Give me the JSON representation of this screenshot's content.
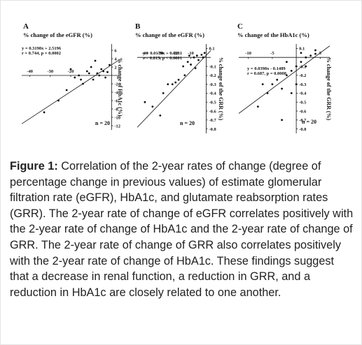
{
  "chart_data": [
    {
      "type": "scatter",
      "panel": "A",
      "xlabel": "% change of the eGFR (%)",
      "ylabel": "% change of HbA1c (%)",
      "equation": "y = 0.3198x + 2.5196",
      "stats": "r = 0.744, p = 0.0002",
      "n_label": "n = 20",
      "fit": {
        "slope": 0.3198,
        "intercept": 2.5196
      },
      "xlim": [
        -44,
        4
      ],
      "ylim": [
        -13,
        7.5
      ],
      "xticks": [
        -40,
        -30,
        -20
      ],
      "yticks": [
        6,
        4,
        2,
        -2,
        -4,
        -6,
        -8,
        -10,
        -12
      ],
      "color": "#111111",
      "x": [
        -33,
        -26,
        -22,
        -18,
        -15,
        -12,
        -10,
        -8,
        -7,
        -5,
        -3,
        -2,
        -1,
        -14,
        -9,
        -6,
        -4,
        -20,
        -11,
        -16
      ],
      "values": [
        -8.8,
        -6,
        -3.5,
        -0.5,
        -1,
        1,
        2,
        3.5,
        0.5,
        1.5,
        -0.5,
        0.8,
        2.5,
        -2,
        -1,
        0,
        1,
        1.5,
        0.5,
        0
      ]
    },
    {
      "type": "scatter",
      "panel": "B",
      "xlabel": "% change of the eGFR (%)",
      "ylabel": "% change of the GRR (%)",
      "equation": "y = 0.0179x + 0.0231",
      "stats": "r = 0.815, p < 0.0001",
      "n_label": "n = 20",
      "fit": {
        "slope": 0.0179,
        "intercept": 0.0231
      },
      "xlim": [
        -45,
        3
      ],
      "ylim": [
        -0.85,
        0.15
      ],
      "xticks": [
        -40,
        -30,
        -20,
        -10
      ],
      "yticks": [
        0.1,
        -0.1,
        -0.2,
        -0.3,
        -0.4,
        -0.5,
        -0.6,
        -0.7,
        -0.8
      ],
      "color": "#111111",
      "x": [
        -40,
        -35,
        -30,
        -25,
        -22,
        -20,
        -18,
        -15,
        -12,
        -10,
        -8,
        -6,
        -5,
        -3,
        -2,
        -1,
        -14,
        -28,
        -11,
        -7
      ],
      "values": [
        -0.5,
        -0.55,
        -0.65,
        -0.3,
        -0.3,
        -0.28,
        -0.25,
        -0.1,
        -0.05,
        -0.08,
        0,
        0.02,
        -0.03,
        0.03,
        0,
        0.05,
        -0.2,
        -0.4,
        0.02,
        -0.12
      ]
    },
    {
      "type": "scatter",
      "panel": "C",
      "xlabel": "% change of the HbA1c (%)",
      "ylabel": "% change of the GRR (%)",
      "equation": "y = 0.0398x - 0.1489",
      "stats": "r = 0.687, p = 0.0008",
      "n_label": "n = 20",
      "fit": {
        "slope": 0.0398,
        "intercept": -0.1489
      },
      "xlim": [
        -12,
        7
      ],
      "ylim": [
        -0.85,
        0.15
      ],
      "xticks": [
        -10,
        -5,
        5
      ],
      "yticks": [
        0.1,
        -0.1,
        -0.2,
        -0.3,
        -0.4,
        -0.5,
        -0.6,
        -0.7,
        -0.8
      ],
      "color": "#111111",
      "x": [
        -8,
        -6,
        -5,
        -4,
        -3,
        -2,
        -1,
        0,
        1,
        2,
        3,
        4,
        -3,
        -1,
        0,
        1,
        2,
        -7,
        -2,
        4
      ],
      "values": [
        -0.55,
        -0.4,
        -0.3,
        -0.25,
        -0.7,
        -0.2,
        -0.15,
        -0.1,
        -0.05,
        0,
        0.02,
        0.04,
        -0.35,
        -0.4,
        -0.3,
        0.05,
        -0.1,
        -0.3,
        -0.05,
        0.08
      ]
    }
  ],
  "caption": {
    "label": "Figure 1:",
    "text": "Correlation of the 2-year rates of change (degree of percentage change in previous values) of estimate glomerular filtration rate (eGFR), HbA1c, and glutamate reabsorption rates (GRR). The 2-year rate of change of eGFR correlates positively with the 2-year rate of change of HbA1c and the 2-year rate of change of GRR. The 2-year rate of change of GRR also correlates positively with the 2-year rate of change of HbA1c. These findings suggest that a decrease in renal function, a reduction in GRR, and a reduction in HbA1c are closely related to one another."
  }
}
